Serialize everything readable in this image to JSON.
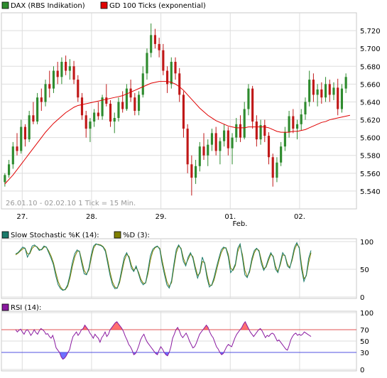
{
  "colors": {
    "background": "#ffffff",
    "grid": "#dddddd",
    "axis_box": "#c8c8c8",
    "candle_up": "#2e8b2e",
    "candle_down": "#c01818",
    "gd_line": "#e00000",
    "stoch_k": "#1a7a6a",
    "stoch_d": "#808000",
    "rsi": "#8a1aa0",
    "rsi_overbought_fill": "#ff6060",
    "rsi_oversold_fill": "#6060ff",
    "rsi_line70": "#e05050",
    "rsi_line30": "#5050e0"
  },
  "chart_data": [
    {
      "type": "candlestick",
      "legend": [
        {
          "name": "DAX (RBS Indikation)",
          "color": "#2e8b2e"
        },
        {
          "name": "GD 100 Ticks (exponential)",
          "color": "#e00000"
        }
      ],
      "info_text": "26.01.10 - 02.02.10   1 Tick = 15 Min.",
      "ylim": [
        5520,
        5740
      ],
      "y_ticks": [
        "5.540",
        "5.560",
        "5.580",
        "5.600",
        "5.620",
        "5.640",
        "5.660",
        "5.680",
        "5.700",
        "5.720"
      ],
      "y_tick_values": [
        5540,
        5560,
        5580,
        5600,
        5620,
        5640,
        5660,
        5680,
        5700,
        5720
      ],
      "x_labels": [
        "27.",
        "28.",
        "29.",
        "01.",
        "02."
      ],
      "x_label_positions": [
        7.5,
        32.5,
        57.5,
        82.5,
        107.5
      ],
      "x_sublabel": "Feb.",
      "xlim": [
        0,
        128
      ],
      "candles": [
        [
          5550,
          5560,
          5545,
          5558
        ],
        [
          5558,
          5575,
          5555,
          5570
        ],
        [
          5570,
          5595,
          5565,
          5590
        ],
        [
          5590,
          5605,
          5580,
          5585
        ],
        [
          5585,
          5620,
          5582,
          5612
        ],
        [
          5612,
          5615,
          5590,
          5598
        ],
        [
          5598,
          5630,
          5595,
          5625
        ],
        [
          5625,
          5640,
          5615,
          5618
        ],
        [
          5618,
          5650,
          5615,
          5645
        ],
        [
          5645,
          5655,
          5630,
          5640
        ],
        [
          5640,
          5665,
          5635,
          5660
        ],
        [
          5660,
          5675,
          5645,
          5655
        ],
        [
          5655,
          5680,
          5650,
          5675
        ],
        [
          5675,
          5685,
          5660,
          5668
        ],
        [
          5668,
          5690,
          5660,
          5685
        ],
        [
          5685,
          5692,
          5670,
          5675
        ],
        [
          5675,
          5688,
          5665,
          5680
        ],
        [
          5680,
          5686,
          5660,
          5665
        ],
        [
          5665,
          5670,
          5640,
          5645
        ],
        [
          5645,
          5650,
          5620,
          5625
        ],
        [
          5625,
          5630,
          5600,
          5610
        ],
        [
          5610,
          5622,
          5595,
          5618
        ],
        [
          5618,
          5632,
          5612,
          5628
        ],
        [
          5628,
          5640,
          5620,
          5624
        ],
        [
          5624,
          5648,
          5620,
          5645
        ],
        [
          5645,
          5660,
          5635,
          5638
        ],
        [
          5638,
          5642,
          5612,
          5618
        ],
        [
          5618,
          5628,
          5605,
          5622
        ],
        [
          5622,
          5645,
          5618,
          5640
        ],
        [
          5640,
          5652,
          5628,
          5632
        ],
        [
          5632,
          5660,
          5630,
          5655
        ],
        [
          5655,
          5665,
          5640,
          5645
        ],
        [
          5645,
          5650,
          5625,
          5630
        ],
        [
          5630,
          5652,
          5625,
          5648
        ],
        [
          5648,
          5680,
          5645,
          5672
        ],
        [
          5672,
          5700,
          5665,
          5695
        ],
        [
          5695,
          5728,
          5690,
          5715
        ],
        [
          5715,
          5722,
          5700,
          5705
        ],
        [
          5705,
          5712,
          5690,
          5698
        ],
        [
          5698,
          5705,
          5670,
          5675
        ],
        [
          5675,
          5680,
          5650,
          5660
        ],
        [
          5660,
          5690,
          5655,
          5685
        ],
        [
          5685,
          5690,
          5665,
          5672
        ],
        [
          5672,
          5678,
          5640,
          5648
        ],
        [
          5648,
          5652,
          5600,
          5610
        ],
        [
          5610,
          5615,
          5560,
          5570
        ],
        [
          5570,
          5580,
          5535,
          5555
        ],
        [
          5555,
          5575,
          5548,
          5568
        ],
        [
          5568,
          5595,
          5562,
          5590
        ],
        [
          5590,
          5605,
          5575,
          5580
        ],
        [
          5580,
          5598,
          5568,
          5592
        ],
        [
          5592,
          5610,
          5585,
          5605
        ],
        [
          5605,
          5612,
          5580,
          5585
        ],
        [
          5585,
          5600,
          5570,
          5596
        ],
        [
          5596,
          5615,
          5590,
          5608
        ],
        [
          5608,
          5612,
          5580,
          5588
        ],
        [
          5588,
          5605,
          5570,
          5600
        ],
        [
          5600,
          5622,
          5595,
          5615
        ],
        [
          5615,
          5625,
          5595,
          5600
        ],
        [
          5600,
          5640,
          5598,
          5632
        ],
        [
          5632,
          5660,
          5625,
          5655
        ],
        [
          5655,
          5658,
          5610,
          5618
        ],
        [
          5618,
          5625,
          5590,
          5598
        ],
        [
          5598,
          5620,
          5592,
          5614
        ],
        [
          5614,
          5620,
          5595,
          5602
        ],
        [
          5602,
          5606,
          5570,
          5578
        ],
        [
          5578,
          5582,
          5545,
          5555
        ],
        [
          5555,
          5578,
          5550,
          5572
        ],
        [
          5572,
          5595,
          5568,
          5590
        ],
        [
          5590,
          5612,
          5585,
          5606
        ],
        [
          5606,
          5630,
          5600,
          5624
        ],
        [
          5624,
          5632,
          5605,
          5610
        ],
        [
          5610,
          5620,
          5598,
          5615
        ],
        [
          5615,
          5632,
          5608,
          5626
        ],
        [
          5626,
          5645,
          5620,
          5640
        ],
        [
          5640,
          5675,
          5635,
          5665
        ],
        [
          5665,
          5672,
          5640,
          5648
        ],
        [
          5648,
          5660,
          5635,
          5654
        ],
        [
          5654,
          5662,
          5638,
          5645
        ],
        [
          5645,
          5668,
          5640,
          5660
        ],
        [
          5660,
          5665,
          5640,
          5648
        ],
        [
          5648,
          5662,
          5642,
          5656
        ],
        [
          5656,
          5666,
          5625,
          5632
        ],
        [
          5632,
          5660,
          5628,
          5655
        ],
        [
          5655,
          5672,
          5650,
          5668
        ]
      ],
      "gd_line": [
        5548,
        5553,
        5558,
        5564,
        5570,
        5576,
        5582,
        5588,
        5594,
        5600,
        5606,
        5611,
        5616,
        5620,
        5624,
        5628,
        5631,
        5634,
        5636,
        5637,
        5638,
        5639,
        5640,
        5641,
        5642,
        5643,
        5644,
        5645,
        5646,
        5647,
        5649,
        5651,
        5653,
        5655,
        5657,
        5659,
        5661,
        5662,
        5663,
        5663,
        5663,
        5662,
        5660,
        5657,
        5653,
        5648,
        5643,
        5638,
        5633,
        5629,
        5625,
        5622,
        5619,
        5617,
        5615,
        5613,
        5612,
        5611,
        5611,
        5611,
        5612,
        5612,
        5612,
        5612,
        5612,
        5611,
        5609,
        5607,
        5606,
        5606,
        5606,
        5607,
        5607,
        5608,
        5609,
        5611,
        5613,
        5615,
        5617,
        5618,
        5620,
        5621,
        5622,
        5623,
        5624,
        5625
      ]
    },
    {
      "type": "line",
      "legend": [
        {
          "name": "Slow Stochastic %K (14):",
          "color": "#1a7a6a"
        },
        {
          "name": "%D (3):",
          "color": "#808000"
        }
      ],
      "ylim": [
        0,
        100
      ],
      "y_ticks": [
        "0",
        "50",
        "100"
      ],
      "y_tick_values": [
        0,
        50,
        100
      ],
      "series_k": [
        78,
        80,
        85,
        90,
        88,
        72,
        80,
        92,
        94,
        90,
        84,
        86,
        92,
        90,
        80,
        70,
        58,
        38,
        22,
        15,
        12,
        14,
        22,
        40,
        62,
        78,
        85,
        82,
        60,
        42,
        40,
        52,
        76,
        92,
        96,
        94,
        93,
        90,
        82,
        60,
        38,
        22,
        15,
        16,
        30,
        52,
        72,
        80,
        70,
        52,
        46,
        56,
        42,
        28,
        22,
        26,
        48,
        74,
        86,
        90,
        92,
        86,
        60,
        40,
        22,
        16,
        30,
        60,
        86,
        94,
        86,
        64,
        56,
        72,
        80,
        70,
        50,
        34,
        46,
        72,
        60,
        34,
        18,
        22,
        36,
        54,
        70,
        85,
        90,
        88,
        72,
        44,
        50,
        60,
        88,
        96,
        70,
        40,
        35,
        48,
        70,
        84,
        88,
        82,
        60,
        48,
        56,
        70,
        80,
        72,
        50,
        44,
        62,
        80,
        74,
        56,
        52,
        70,
        90,
        98,
        88,
        50,
        28,
        40,
        70,
        84
      ],
      "series_d": [
        76,
        79,
        83,
        87,
        88,
        78,
        78,
        88,
        92,
        91,
        86,
        85,
        90,
        90,
        83,
        74,
        62,
        44,
        28,
        18,
        13,
        13,
        19,
        34,
        55,
        72,
        82,
        83,
        66,
        48,
        41,
        49,
        70,
        88,
        95,
        95,
        94,
        91,
        85,
        66,
        44,
        27,
        18,
        16,
        26,
        46,
        66,
        77,
        73,
        57,
        48,
        53,
        45,
        32,
        25,
        25,
        42,
        66,
        82,
        89,
        91,
        88,
        66,
        46,
        28,
        19,
        26,
        54,
        80,
        92,
        88,
        70,
        59,
        68,
        77,
        73,
        55,
        39,
        43,
        64,
        62,
        40,
        22,
        21,
        31,
        48,
        65,
        80,
        88,
        89,
        77,
        52,
        48,
        57,
        82,
        93,
        76,
        48,
        37,
        45,
        65,
        80,
        87,
        84,
        66,
        51,
        54,
        66,
        77,
        74,
        55,
        46,
        58,
        76,
        75,
        60,
        53,
        66,
        85,
        95,
        90,
        58,
        33,
        38,
        62,
        80
      ]
    },
    {
      "type": "line",
      "legend": [
        {
          "name": "RSI (14):",
          "color": "#8a1aa0"
        }
      ],
      "ylim": [
        0,
        100
      ],
      "y_ticks": [
        "0",
        "30",
        "50",
        "70",
        "100"
      ],
      "y_tick_values": [
        0,
        30,
        50,
        70,
        100
      ],
      "overbought": 70,
      "oversold": 30,
      "series": [
        70,
        66,
        69,
        71,
        66,
        62,
        68,
        70,
        66,
        60,
        64,
        70,
        65,
        62,
        68,
        72,
        70,
        67,
        62,
        63,
        58,
        55,
        60,
        50,
        38,
        34,
        30,
        22,
        18,
        20,
        24,
        30,
        35,
        48,
        58,
        62,
        66,
        60,
        64,
        70,
        72,
        78,
        74,
        70,
        64,
        60,
        55,
        62,
        58,
        55,
        48,
        56,
        60,
        66,
        58,
        62,
        70,
        74,
        78,
        82,
        84,
        80,
        76,
        72,
        66,
        58,
        52,
        44,
        40,
        34,
        26,
        28,
        34,
        42,
        52,
        58,
        62,
        54,
        48,
        44,
        40,
        36,
        32,
        28,
        26,
        34,
        40,
        36,
        30,
        26,
        24,
        30,
        40,
        55,
        62,
        70,
        74,
        68,
        60,
        56,
        60,
        64,
        58,
        50,
        44,
        38,
        40,
        46,
        54,
        62,
        66,
        70,
        74,
        78,
        74,
        66,
        60,
        56,
        48,
        40,
        36,
        30,
        26,
        28,
        34,
        40,
        44,
        42,
        40,
        48,
        56,
        62,
        66,
        70,
        74,
        80,
        84,
        78,
        72,
        66,
        62,
        58,
        62,
        66,
        70,
        72,
        68,
        62,
        56,
        60,
        58,
        62,
        64,
        62,
        56,
        50,
        52,
        48,
        44,
        40,
        36,
        34,
        42,
        52,
        58,
        62,
        64,
        60,
        62,
        60,
        62,
        66,
        64,
        62,
        60,
        58
      ]
    }
  ]
}
